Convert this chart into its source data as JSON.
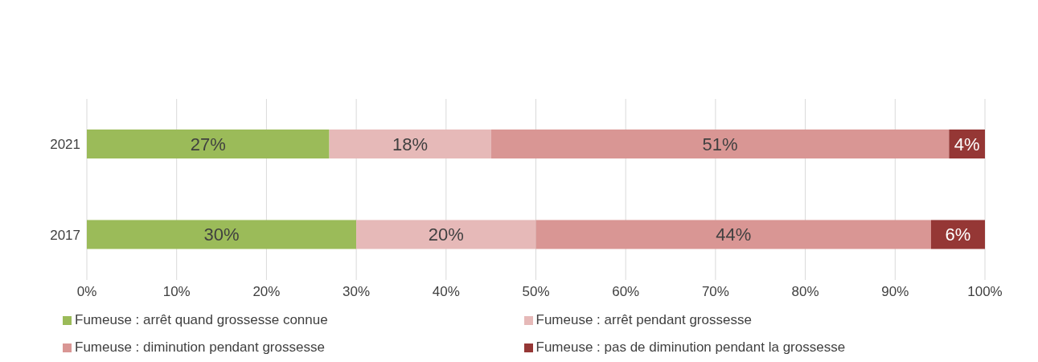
{
  "chart_data": {
    "type": "bar",
    "orientation": "horizontal",
    "stacked": true,
    "categories": [
      "2021",
      "2017"
    ],
    "series": [
      {
        "name": "Fumeuse : arrêt quand grossesse connue",
        "color": "#9bbb59",
        "values": [
          27,
          30
        ],
        "value_labels": [
          "27%",
          "30%"
        ]
      },
      {
        "name": "Fumeuse : arrêt pendant grossesse",
        "color": "#e6b9b8",
        "values": [
          18,
          20
        ],
        "value_labels": [
          "18%",
          "20%"
        ]
      },
      {
        "name": "Fumeuse : diminution pendant grossesse",
        "color": "#d99694",
        "values": [
          51,
          44
        ],
        "value_labels": [
          "51%",
          "44%"
        ]
      },
      {
        "name": "Fumeuse : pas de diminution pendant la grossesse",
        "color": "#953735",
        "values": [
          4,
          6
        ],
        "value_labels": [
          "4%",
          "6%"
        ]
      }
    ],
    "xlim": [
      0,
      100
    ],
    "xticks": [
      {
        "value": 0,
        "label": "0%"
      },
      {
        "value": 10,
        "label": "10%"
      },
      {
        "value": 20,
        "label": "20%"
      },
      {
        "value": 30,
        "label": "30%"
      },
      {
        "value": 40,
        "label": "40%"
      },
      {
        "value": 50,
        "label": "50%"
      },
      {
        "value": 60,
        "label": "60%"
      },
      {
        "value": 70,
        "label": "70%"
      },
      {
        "value": 80,
        "label": "80%"
      },
      {
        "value": 90,
        "label": "90%"
      },
      {
        "value": 100,
        "label": "100%"
      }
    ],
    "grid": "x",
    "legend": "bottom"
  }
}
